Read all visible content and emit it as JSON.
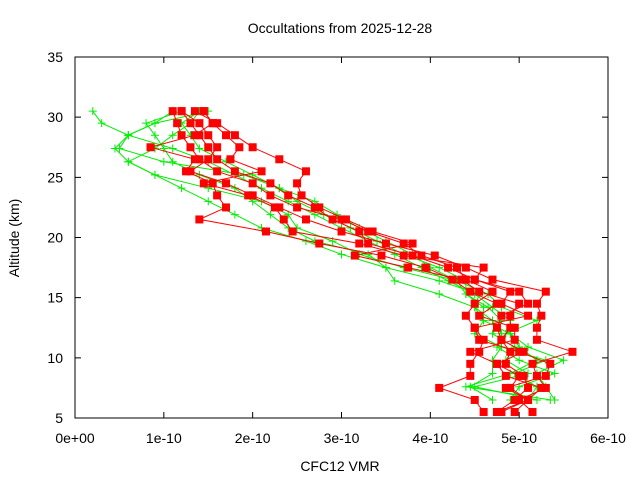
{
  "chart_data": {
    "type": "line",
    "title": "Occultations from 2025-12-28",
    "xlabel": "CFC12 VMR",
    "ylabel": "Altitude (km)",
    "xlim": [
      0,
      6e-10
    ],
    "ylim": [
      5,
      35
    ],
    "x_ticks": [
      "0e+00",
      "1e-10",
      "2e-10",
      "3e-10",
      "4e-10",
      "5e-10",
      "6e-10"
    ],
    "x_tick_values": [
      0,
      1e-10,
      2e-10,
      3e-10,
      4e-10,
      5e-10,
      6e-10
    ],
    "y_ticks": [
      "5",
      "10",
      "15",
      "20",
      "25",
      "30",
      "35"
    ],
    "y_tick_values": [
      5,
      10,
      15,
      20,
      25,
      30,
      35
    ],
    "grid": false,
    "legend": "none",
    "colors": {
      "red_series": "#ff0000",
      "green_series": "#00ee00"
    },
    "red_profiles": {
      "marker": "filled-square",
      "altitudes": [
        5.5,
        6.5,
        7.5,
        8.5,
        9.5,
        10.5,
        11.5,
        12.5,
        13.5,
        14.5,
        15.5,
        16.5,
        17.5,
        18.5,
        19.5,
        20.5,
        21.5,
        22.5,
        23.5,
        24.5,
        25.5,
        26.5,
        27.5,
        28.5,
        29.5,
        30.5
      ],
      "profiles": [
        [
          4.6e-10,
          4.5e-10,
          4.1e-10,
          4.45e-10,
          4.45e-10,
          4.55e-10,
          4.6e-10,
          4.5e-10,
          4.4e-10,
          4.5e-10,
          4.7e-10,
          4.4e-10,
          4.3e-10,
          3.9e-10,
          3.7e-10,
          3.3e-10,
          3e-10,
          2.5e-10,
          2.2e-10,
          2e-10,
          1.6e-10,
          1.4e-10,
          1.3e-10,
          1.2e-10,
          1.15e-10,
          1.1e-10
        ],
        [
          4.75e-10,
          5.1e-10,
          4.9e-10,
          5e-10,
          4.75e-10,
          5.05e-10,
          4.8e-10,
          4.75e-10,
          4.8e-10,
          5.1e-10,
          5e-10,
          4.5e-10,
          4.2e-10,
          3.8e-10,
          3.3e-10,
          3.2e-10,
          2.9e-10,
          2.7e-10,
          2.4e-10,
          2.2e-10,
          1.8e-10,
          1.6e-10,
          1.5e-10,
          1.4e-10,
          1.3e-10,
          1.2e-10
        ],
        [
          5.15e-10,
          5e-10,
          5.3e-10,
          5.2e-10,
          5.15e-10,
          5.6e-10,
          5.2e-10,
          5.2e-10,
          5.25e-10,
          5.2e-10,
          5.3e-10,
          4.7e-10,
          4.4e-10,
          4.05e-10,
          3.5e-10,
          3e-10,
          2.6e-10,
          2.3e-10,
          2e-10,
          1.7e-10,
          1.3e-10,
          1.5e-10,
          1.6e-10,
          1.5e-10,
          1.4e-10,
          1.2e-10
        ],
        [
          4.75e-10,
          4.95e-10,
          5.1e-10,
          5.05e-10,
          4.85e-10,
          4.9e-10,
          4.8e-10,
          4.9e-10,
          4.9e-10,
          5e-10,
          4.55e-10,
          4.35e-10,
          3.75e-10,
          3.15e-10,
          3.8e-10,
          3.35e-10,
          3.05e-10,
          2.75e-10,
          2.55e-10,
          2.5e-10,
          2.6e-10,
          2.3e-10,
          2e-10,
          1.8e-10,
          1.6e-10,
          1.35e-10
        ],
        [
          4.95e-10,
          5.1e-10,
          4.85e-10,
          5.3e-10,
          5.35e-10,
          5e-10,
          4.55e-10,
          4.5e-10,
          5.1e-10,
          4.8e-10,
          4.9e-10,
          4.5e-10,
          4.6e-10,
          3.7e-10,
          3.2e-10,
          2.45e-10,
          2.35e-10,
          2.25e-10,
          1.95e-10,
          1.45e-10,
          2.1e-10,
          1.75e-10,
          1.85e-10,
          1.7e-10,
          1.55e-10,
          1.45e-10
        ],
        [
          4.8e-10,
          5.1e-10,
          5.25e-10,
          4.85e-10,
          4.75e-10,
          4.45e-10,
          4.95e-10,
          4.95e-10,
          4.55e-10,
          4.75e-10,
          4.45e-10,
          4.25e-10,
          3.95e-10,
          3.45e-10,
          2.75e-10,
          2.15e-10,
          1.4e-10,
          1.7e-10,
          1.6e-10,
          1.55e-10,
          1.25e-10,
          1.35e-10,
          8.5e-11,
          1.35e-10,
          1.55e-10,
          1.45e-10
        ]
      ]
    },
    "green_profiles": {
      "marker": "plus",
      "altitudes": [
        6.5,
        7.6,
        8.7,
        9.8,
        10.9,
        12.0,
        13.1,
        14.2,
        15.3,
        16.4,
        17.5,
        18.6,
        19.7,
        20.8,
        21.9,
        23.0,
        24.1,
        25.2,
        26.3,
        27.4,
        28.5,
        29.5,
        30.5
      ],
      "profiles": [
        [
          5.4e-10,
          5.3e-10,
          5.2e-10,
          5.5e-10,
          5.1e-10,
          4.9e-10,
          4.9e-10,
          4.7e-10,
          4.5e-10,
          4.2e-10,
          3.9e-10,
          3.6e-10,
          3.3e-10,
          3e-10,
          2.7e-10,
          2.4e-10,
          2.1e-10,
          1.8e-10,
          1.5e-10,
          1.1e-10,
          6e-11,
          3e-11,
          2e-11
        ],
        [
          5.35e-10,
          4.4e-10,
          4.9e-10,
          5.2e-10,
          5e-10,
          4.9e-10,
          4.6e-10,
          4.6e-10,
          4.4e-10,
          4.4e-10,
          4.1e-10,
          3.7e-10,
          3.4e-10,
          3.1e-10,
          2.8e-10,
          2.5e-10,
          2.3e-10,
          1.9e-10,
          1e-10,
          5e-11,
          6e-11,
          9e-11,
          1.1e-10
        ],
        [
          5.1e-10,
          5.2e-10,
          4.95e-10,
          5.3e-10,
          4.8e-10,
          4.8e-10,
          4.7e-10,
          4.5e-10,
          4.55e-10,
          4.1e-10,
          3.5e-10,
          3e-10,
          2.6e-10,
          2.1e-10,
          1.8e-10,
          1.5e-10,
          1.2e-10,
          9e-11,
          6e-11,
          4.5e-11,
          6e-11,
          9e-11,
          1.5e-10
        ],
        [
          4.9e-10,
          5e-10,
          5.4e-10,
          5e-10,
          4.75e-10,
          4.85e-10,
          5.2e-10,
          4.8e-10,
          4.65e-10,
          4.3e-10,
          4e-10,
          3.8e-10,
          3.5e-10,
          3.2e-10,
          2.95e-10,
          2.7e-10,
          2.3e-10,
          2e-10,
          1.7e-10,
          1.4e-10,
          1.3e-10,
          1.2e-10,
          1.4e-10
        ],
        [
          4.7e-10,
          4.45e-10,
          4.7e-10,
          4.7e-10,
          4.8e-10,
          4.5e-10,
          4.6e-10,
          4.5e-10,
          4.1e-10,
          3.6e-10,
          3.5e-10,
          3.3e-10,
          2.7e-10,
          2.4e-10,
          2.2e-10,
          2e-10,
          1.8e-10,
          1.4e-10,
          1.1e-10,
          1e-10,
          9e-11,
          8e-11,
          1.2e-10
        ],
        [
          5.2e-10,
          4.5e-10,
          5.1e-10,
          4.85e-10,
          4.95e-10,
          4.7e-10,
          4.8e-10,
          4.65e-10,
          4.4e-10,
          4.3e-10,
          3.7e-10,
          3.2e-10,
          2.9e-10,
          2.5e-10,
          2.4e-10,
          2.1e-10,
          1.5e-10,
          9e-11,
          6e-11,
          9e-11,
          1.1e-10,
          1.3e-10,
          1.4e-10
        ]
      ]
    }
  }
}
